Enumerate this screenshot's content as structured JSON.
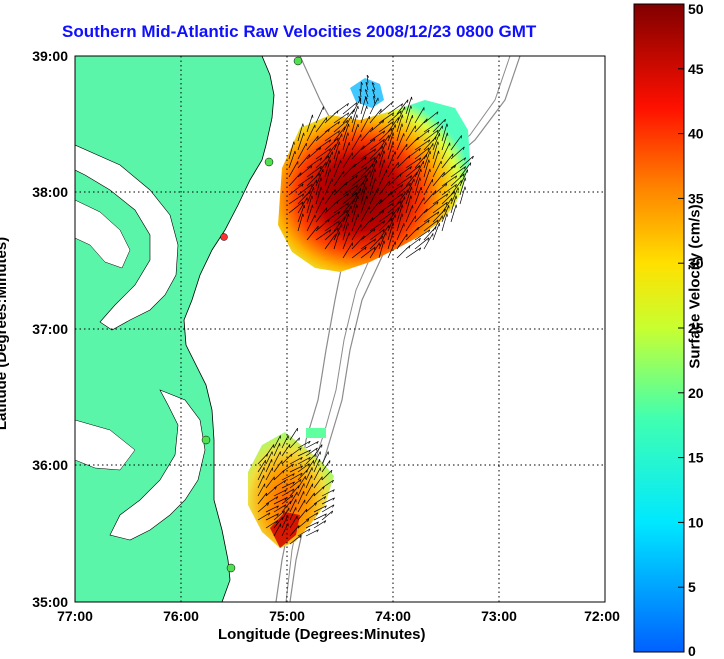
{
  "title": "Southern Mid-Atlantic Raw Velocities 2008/12/23 0800 GMT",
  "xlabel": "Longitude (Degrees:Minutes)",
  "ylabel": "Latitude (Degrees:Minutes)",
  "colorbar": {
    "label": "Surface Velocity (cm/s)",
    "range": [
      0,
      50
    ],
    "ticks": [
      "0",
      "5",
      "10",
      "15",
      "20",
      "25",
      "30",
      "35",
      "40",
      "45",
      "50"
    ]
  },
  "axes": {
    "x_ticks": [
      "77:00",
      "76:00",
      "75:00",
      "74:00",
      "73:00",
      "72:00"
    ],
    "y_ticks": [
      "39:00",
      "38:00",
      "37:00",
      "36:00",
      "35:00"
    ],
    "xlim": [
      "77:00W",
      "72:00W"
    ],
    "ylim": [
      "35:00N",
      "39:00N"
    ],
    "grid": true
  },
  "colors": {
    "land": "#5af5a8",
    "title": "#1010ff",
    "grid": "#000000"
  }
}
